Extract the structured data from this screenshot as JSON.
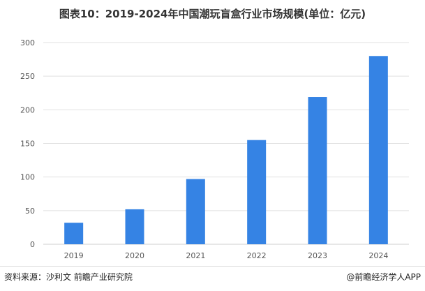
{
  "chart_data": {
    "type": "bar",
    "title": "图表10：2019-2024年中国潮玩盲盒行业市场规模(单位：亿元)",
    "categories": [
      "2019",
      "2020",
      "2021",
      "2022",
      "2023",
      "2024"
    ],
    "values": [
      32,
      52,
      97,
      155,
      219,
      280
    ],
    "ylim": [
      0,
      300
    ],
    "yticks": [
      0,
      50,
      100,
      150,
      200,
      250,
      300
    ],
    "grid": true,
    "bar_color": "#3583e4"
  },
  "footer": {
    "source": "资料来源：沙利文 前瞻产业研究院",
    "brand": "@前瞻经济学人APP"
  }
}
